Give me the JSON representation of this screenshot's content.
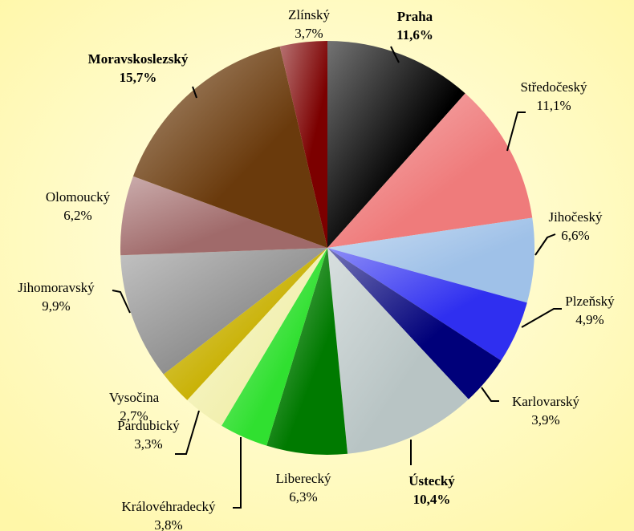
{
  "chart_data": {
    "type": "pie",
    "categories": [
      "Praha",
      "Středočeský",
      "Jihočeský",
      "Plzeňský",
      "Karlovarský",
      "Ústecký",
      "Liberecký",
      "Královéhradecký",
      "Pardubický",
      "Vysočina",
      "Jihomoravský",
      "Olomoucký",
      "Moravskoslezský",
      "Zlínský"
    ],
    "values": [
      11.6,
      11.1,
      6.6,
      4.9,
      3.9,
      10.4,
      6.3,
      3.8,
      3.3,
      2.7,
      9.9,
      6.2,
      15.7,
      3.7
    ],
    "value_labels": [
      "11,6%",
      "11,1%",
      "6,6%",
      "4,9%",
      "3,9%",
      "10,4%",
      "6,3%",
      "3,8%",
      "3,3%",
      "2,7%",
      "9,9%",
      "6,2%",
      "15,7%",
      "3,7%"
    ],
    "colors": [
      "#000000",
      "#ef7b7b",
      "#9fc1e8",
      "#2f2ff0",
      "#00007a",
      "#b8c4c4",
      "#007a00",
      "#30e030",
      "#f2f0b0",
      "#c8b000",
      "#909090",
      "#a06a6a",
      "#6a3a0c",
      "#7c0000"
    ],
    "bold": [
      true,
      false,
      false,
      false,
      false,
      true,
      false,
      false,
      false,
      false,
      false,
      false,
      true,
      false
    ]
  }
}
